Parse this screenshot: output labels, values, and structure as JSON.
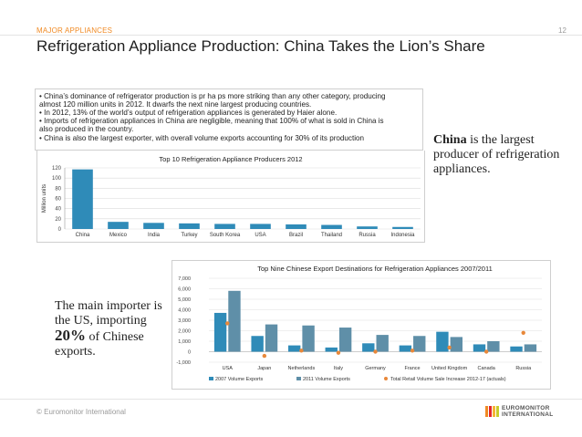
{
  "header": {
    "section_label": "MAJOR APPLIANCES",
    "page_number": "12",
    "title": "Refrigeration Appliance Production: China Takes the Lion’s Share"
  },
  "bullets": [
    "• China’s dominance of refrigerator production is pr ha ps more striking than any other category, producing",
    "  almost 120 million units in 2012. It dwarfs the next nine largest producing countries.",
    "• In 2012, 13% of the world’s output of refrigeration appliances is generated by Haier alone.",
    "• Imports of refrigeration appliances in China are negligible, meaning that 100% of what is sold in China is",
    "  also produced in the country.",
    "• China is also the largest exporter, with overall volume exports accounting for 30% of its production"
  ],
  "callouts": {
    "china_bold": "China",
    "china_rest": " is the largest producer of refrigeration appliances.",
    "us_pre": "The main importer is the US, importing ",
    "us_pct": "20%",
    "us_post": " of Chinese exports."
  },
  "footer": {
    "copyright": "© Euromonitor International"
  },
  "logo": {
    "line1": "EUROMONITOR",
    "line2": "INTERNATIONAL"
  },
  "colors": {
    "accent": "#f08a24",
    "bar": "#2f8bb8",
    "bar_light": "#5f8fa8",
    "dot": "#e8883a"
  },
  "chart_data": [
    {
      "type": "bar",
      "title": "Top 10 Refrigeration Appliance Producers 2012",
      "ylabel": "Million units",
      "xlabel": "",
      "ylim": [
        0,
        120
      ],
      "yticks": [
        0,
        20,
        40,
        60,
        80,
        100,
        120
      ],
      "grid": true,
      "categories": [
        "China",
        "Mexico",
        "India",
        "Turkey",
        "South Korea",
        "USA",
        "Brazil",
        "Thailand",
        "Russia",
        "Indonesia"
      ],
      "values": [
        117,
        14,
        12,
        11,
        10,
        10,
        9,
        8,
        5,
        4
      ]
    },
    {
      "type": "bar",
      "title": "Top Nine Chinese Export Destinations for Refrigeration Appliances 2007/2011",
      "ylim": [
        -1000,
        7000
      ],
      "yticks": [
        -1000,
        0,
        1000,
        2000,
        3000,
        4000,
        5000,
        6000,
        7000
      ],
      "ytick_labels": [
        "-1,000",
        "0",
        "1,000",
        "2,000",
        "3,000",
        "4,000",
        "5,000",
        "6,000",
        "7,000"
      ],
      "categories": [
        "USA",
        "Japan",
        "Netherlands",
        "Italy",
        "Germany",
        "France",
        "United Kingdom",
        "Canada",
        "Russia"
      ],
      "series": [
        {
          "name": "2007 Volume Exports",
          "values": [
            3700,
            1500,
            600,
            400,
            800,
            600,
            1900,
            700,
            500
          ]
        },
        {
          "name": "2011 Volume Exports",
          "values": [
            5800,
            2600,
            2500,
            2300,
            1600,
            1500,
            1400,
            1000,
            700
          ]
        },
        {
          "name": "Total Retail Volume Sale Increase 2012-17 (actuals)",
          "type": "scatter",
          "values": [
            2700,
            -400,
            100,
            -100,
            0,
            100,
            400,
            0,
            1800
          ]
        }
      ]
    }
  ]
}
